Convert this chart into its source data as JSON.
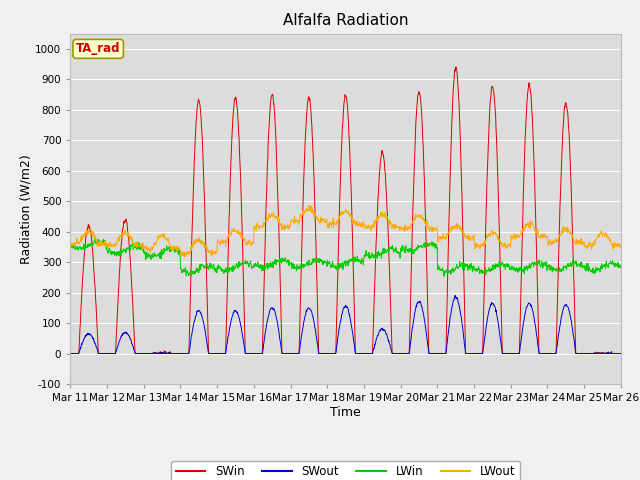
{
  "title": "Alfalfa Radiation",
  "xlabel": "Time",
  "ylabel": "Radiation (W/m2)",
  "ylim": [
    -100,
    1050
  ],
  "yticks": [
    -100,
    0,
    100,
    200,
    300,
    400,
    500,
    600,
    700,
    800,
    900,
    1000
  ],
  "fig_bg_color": "#f0f0f0",
  "plot_bg_color": "#dcdcdc",
  "grid_color": "#ffffff",
  "title_fontsize": 11,
  "label_fontsize": 9,
  "tick_fontsize": 7.5,
  "annotation_text": "TA_rad",
  "annotation_color": "#cc0000",
  "annotation_bg": "#ffffcc",
  "annotation_border": "#999900",
  "line_colors": {
    "SWin": "#dd0000",
    "SWout": "#0000cc",
    "LWin": "#00cc00",
    "LWout": "#ffaa00"
  },
  "num_days": 15,
  "start_day": 11,
  "points_per_day": 96,
  "SWin_peaks": [
    420,
    440,
    0,
    830,
    840,
    850,
    840,
    845,
    660,
    860,
    940,
    880,
    880,
    820,
    0
  ],
  "SWout_peaks": [
    65,
    70,
    0,
    140,
    140,
    150,
    150,
    155,
    80,
    170,
    185,
    165,
    165,
    160,
    0
  ],
  "LWin_base": [
    355,
    340,
    330,
    275,
    285,
    295,
    295,
    298,
    330,
    350,
    280,
    280,
    285,
    285,
    285
  ],
  "LWout_base": [
    360,
    355,
    345,
    330,
    365,
    415,
    435,
    425,
    415,
    410,
    380,
    355,
    385,
    365,
    355
  ]
}
